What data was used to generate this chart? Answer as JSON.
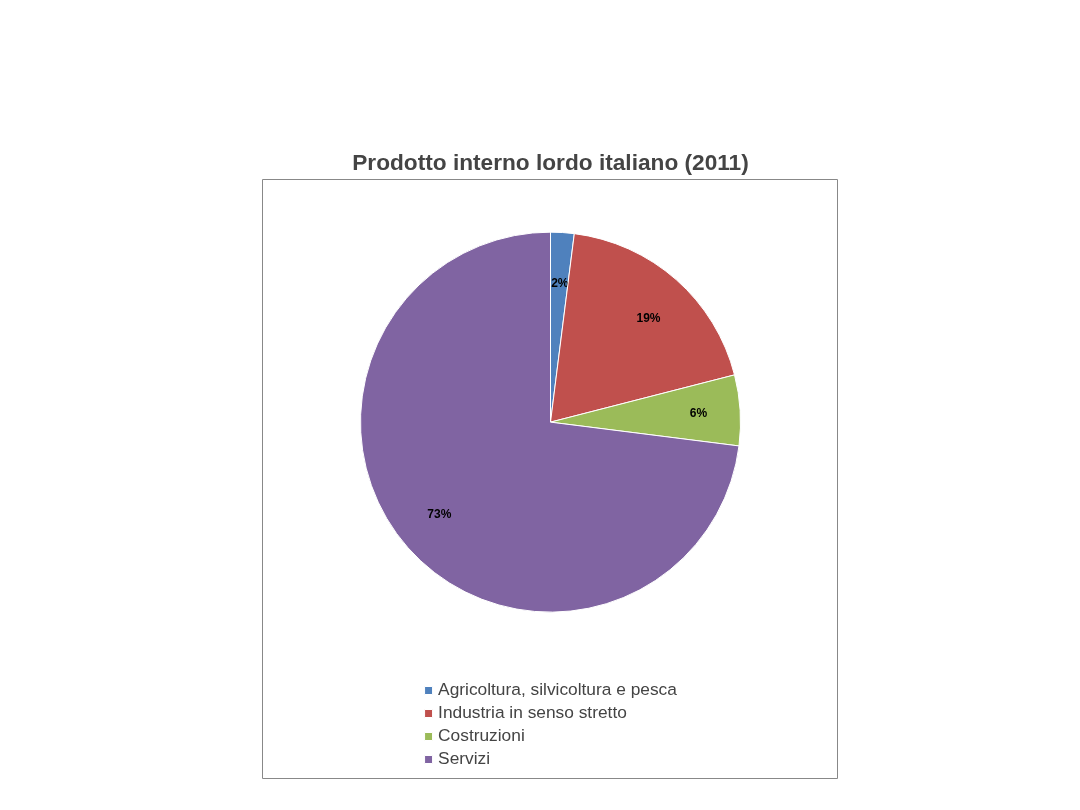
{
  "chart_data": {
    "type": "pie",
    "title": "Prodotto interno lordo italiano (2011)",
    "categories": [
      "Agricoltura, silvicoltura e pesca",
      "Industria in senso stretto",
      "Costruzioni",
      "Servizi"
    ],
    "values": [
      2,
      19,
      6,
      73
    ],
    "colors": [
      "#4f81bd",
      "#c0504d",
      "#9bbb59",
      "#8064a2"
    ],
    "value_labels": [
      "2%",
      "19%",
      "6%",
      "73%"
    ],
    "legend": "bottom"
  }
}
